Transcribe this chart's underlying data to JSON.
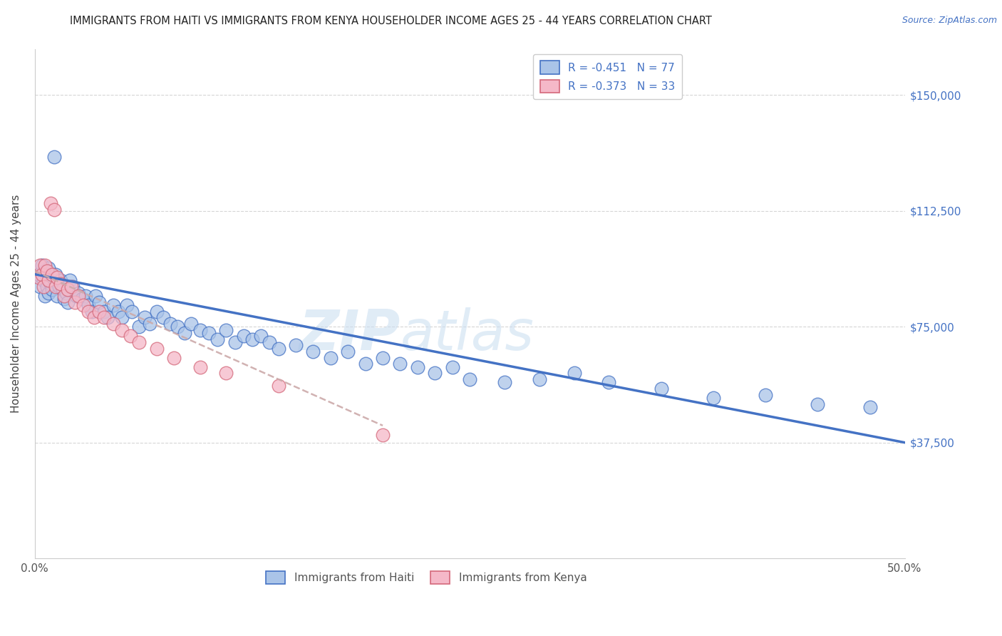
{
  "title": "IMMIGRANTS FROM HAITI VS IMMIGRANTS FROM KENYA HOUSEHOLDER INCOME AGES 25 - 44 YEARS CORRELATION CHART",
  "source": "Source: ZipAtlas.com",
  "ylabel": "Householder Income Ages 25 - 44 years",
  "xlim": [
    0.0,
    0.5
  ],
  "ylim": [
    0,
    165000
  ],
  "yticks": [
    37500,
    75000,
    112500,
    150000
  ],
  "ytick_labels": [
    "$37,500",
    "$75,000",
    "$112,500",
    "$150,000"
  ],
  "xticks": [
    0.0,
    0.1,
    0.2,
    0.3,
    0.4,
    0.5
  ],
  "xtick_labels": [
    "0.0%",
    "",
    "",
    "",
    "",
    "50.0%"
  ],
  "legend_haiti": "R = -0.451   N = 77",
  "legend_kenya": "R = -0.373   N = 33",
  "haiti_color": "#aac4e8",
  "kenya_color": "#f5b8c8",
  "haiti_line_color": "#4472c4",
  "kenya_line_color": "#c8a0b0",
  "watermark": "ZIPatlas",
  "haiti_x": [
    0.002,
    0.003,
    0.004,
    0.005,
    0.006,
    0.006,
    0.007,
    0.007,
    0.008,
    0.008,
    0.009,
    0.01,
    0.011,
    0.012,
    0.013,
    0.014,
    0.015,
    0.016,
    0.017,
    0.018,
    0.019,
    0.02,
    0.022,
    0.024,
    0.025,
    0.027,
    0.029,
    0.031,
    0.033,
    0.035,
    0.037,
    0.04,
    0.042,
    0.045,
    0.048,
    0.05,
    0.053,
    0.056,
    0.06,
    0.063,
    0.066,
    0.07,
    0.074,
    0.078,
    0.082,
    0.086,
    0.09,
    0.095,
    0.1,
    0.105,
    0.11,
    0.115,
    0.12,
    0.125,
    0.13,
    0.135,
    0.14,
    0.15,
    0.16,
    0.17,
    0.18,
    0.19,
    0.2,
    0.21,
    0.22,
    0.23,
    0.24,
    0.25,
    0.27,
    0.29,
    0.31,
    0.33,
    0.36,
    0.39,
    0.42,
    0.45,
    0.48
  ],
  "haiti_y": [
    92000,
    88000,
    95000,
    90000,
    85000,
    93000,
    88000,
    91000,
    86000,
    94000,
    89000,
    87000,
    130000,
    92000,
    85000,
    88000,
    90000,
    87000,
    84000,
    86000,
    83000,
    90000,
    88000,
    85000,
    86000,
    84000,
    85000,
    82000,
    80000,
    85000,
    83000,
    80000,
    78000,
    82000,
    80000,
    78000,
    82000,
    80000,
    75000,
    78000,
    76000,
    80000,
    78000,
    76000,
    75000,
    73000,
    76000,
    74000,
    73000,
    71000,
    74000,
    70000,
    72000,
    71000,
    72000,
    70000,
    68000,
    69000,
    67000,
    65000,
    67000,
    63000,
    65000,
    63000,
    62000,
    60000,
    62000,
    58000,
    57000,
    58000,
    60000,
    57000,
    55000,
    52000,
    53000,
    50000,
    49000
  ],
  "kenya_x": [
    0.002,
    0.003,
    0.004,
    0.005,
    0.006,
    0.007,
    0.008,
    0.009,
    0.01,
    0.011,
    0.012,
    0.013,
    0.015,
    0.017,
    0.019,
    0.021,
    0.023,
    0.025,
    0.028,
    0.031,
    0.034,
    0.037,
    0.04,
    0.045,
    0.05,
    0.055,
    0.06,
    0.07,
    0.08,
    0.095,
    0.11,
    0.14,
    0.2
  ],
  "kenya_y": [
    91000,
    95000,
    92000,
    88000,
    95000,
    93000,
    90000,
    115000,
    92000,
    113000,
    88000,
    91000,
    89000,
    85000,
    87000,
    88000,
    83000,
    85000,
    82000,
    80000,
    78000,
    80000,
    78000,
    76000,
    74000,
    72000,
    70000,
    68000,
    65000,
    62000,
    60000,
    56000,
    40000
  ]
}
